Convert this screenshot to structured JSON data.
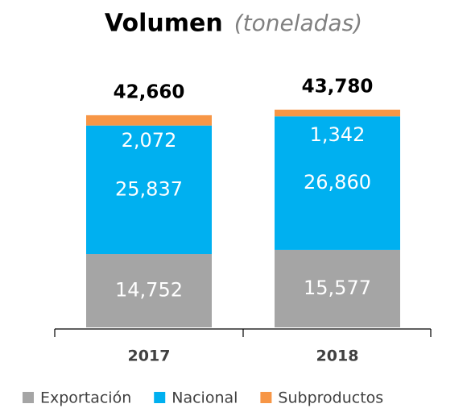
{
  "chart_data": {
    "type": "stacked_bar",
    "title": "Volumen",
    "subtitle": "(toneladas)",
    "categories": [
      "2017",
      "2018"
    ],
    "series": [
      {
        "name": "Exportación",
        "color": "#a5a5a5",
        "values": [
          14752,
          15577
        ],
        "value_labels": [
          "14,752",
          "15,577"
        ]
      },
      {
        "name": "Nacional",
        "color": "#00b0f0",
        "values": [
          25837,
          26860
        ],
        "value_labels": [
          "25,837",
          "26,860"
        ]
      },
      {
        "name": "Subproductos",
        "color": "#f79646",
        "values": [
          2072,
          1342
        ],
        "value_labels": [
          "2,072",
          "1,342"
        ]
      }
    ],
    "totals": [
      42660,
      43780
    ],
    "total_labels": [
      "42,660",
      "43,780"
    ]
  }
}
